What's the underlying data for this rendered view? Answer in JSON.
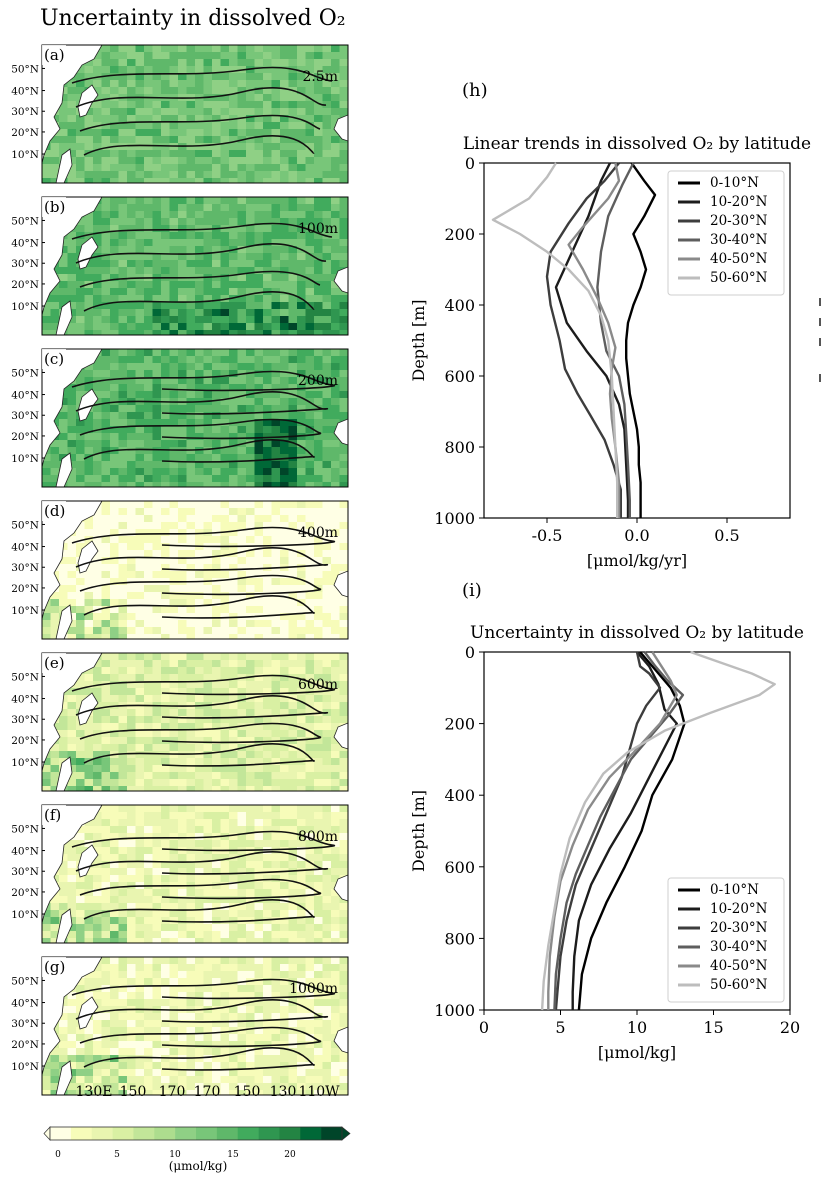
{
  "page_title": "Uncertainty in dissolved O₂",
  "maps": {
    "lat_labels": [
      "50°N",
      "40°N",
      "30°N",
      "20°N",
      "10°N"
    ],
    "lon_labels": [
      "130E",
      "150",
      "170",
      "170",
      "150",
      "130",
      "110W"
    ],
    "panels": [
      {
        "label": "(a)",
        "depth": "2.5m",
        "level": 0.55
      },
      {
        "label": "(b)",
        "depth": "100m",
        "level": 0.6
      },
      {
        "label": "(c)",
        "depth": "200m",
        "level": 0.62
      },
      {
        "label": "(d)",
        "depth": "400m",
        "level": 0.05
      },
      {
        "label": "(e)",
        "depth": "600m",
        "level": 0.22
      },
      {
        "label": "(f)",
        "depth": "800m",
        "level": 0.16
      },
      {
        "label": "(g)",
        "depth": "1000m",
        "level": 0.14
      }
    ],
    "colorbar": {
      "ticks": [
        "0",
        "5",
        "10",
        "15",
        "20"
      ],
      "unit": "(μmol/kg)",
      "colors": [
        "#ffffe5",
        "#f7fcb9",
        "#e9f5b0",
        "#d9f0a3",
        "#c2e699",
        "#addd8e",
        "#8fd085",
        "#78c679",
        "#5fb86a",
        "#41ab5d",
        "#2f9650",
        "#238443",
        "#006837",
        "#004529"
      ]
    }
  },
  "chart_data": [
    {
      "type": "line",
      "panel_label": "(h)",
      "title": "Linear trends in dissolved O₂ by latitude",
      "xlabel": "[μmol/kg/yr]",
      "ylabel": "Depth [m]",
      "xlim": [
        -0.85,
        0.85
      ],
      "ylim": [
        1000,
        0
      ],
      "xticks": [
        "-0.5",
        "0.0",
        "0.5"
      ],
      "xtick_values": [
        -0.5,
        0.0,
        0.5
      ],
      "yticks": [
        "0",
        "200",
        "400",
        "600",
        "800",
        "1000"
      ],
      "ytick_values": [
        0,
        200,
        400,
        600,
        800,
        1000
      ],
      "legend_position": "top-right",
      "series": [
        {
          "name": "0-10°N",
          "color": "#000000",
          "points": [
            [
              -0.03,
              0
            ],
            [
              0.04,
              50
            ],
            [
              0.1,
              90
            ],
            [
              0.04,
              150
            ],
            [
              -0.02,
              200
            ],
            [
              0.02,
              250
            ],
            [
              0.05,
              300
            ],
            [
              0.02,
              350
            ],
            [
              -0.02,
              400
            ],
            [
              -0.05,
              450
            ],
            [
              -0.06,
              500
            ],
            [
              -0.06,
              550
            ],
            [
              -0.05,
              600
            ],
            [
              -0.04,
              650
            ],
            [
              -0.02,
              700
            ],
            [
              0.0,
              750
            ],
            [
              0.01,
              800
            ],
            [
              0.01,
              850
            ],
            [
              0.02,
              900
            ],
            [
              0.02,
              950
            ],
            [
              0.02,
              1000
            ]
          ]
        },
        {
          "name": "10-20°N",
          "color": "#1c1c1c",
          "points": [
            [
              -0.15,
              0
            ],
            [
              -0.2,
              50
            ],
            [
              -0.27,
              150
            ],
            [
              -0.36,
              250
            ],
            [
              -0.45,
              350
            ],
            [
              -0.39,
              450
            ],
            [
              -0.28,
              530
            ],
            [
              -0.17,
              600
            ],
            [
              -0.1,
              680
            ],
            [
              -0.07,
              750
            ],
            [
              -0.06,
              850
            ],
            [
              -0.05,
              950
            ],
            [
              -0.05,
              1000
            ]
          ]
        },
        {
          "name": "20-30°N",
          "color": "#3d3d3d",
          "points": [
            [
              -0.1,
              0
            ],
            [
              -0.18,
              50
            ],
            [
              -0.28,
              100
            ],
            [
              -0.38,
              170
            ],
            [
              -0.48,
              250
            ],
            [
              -0.5,
              320
            ],
            [
              -0.48,
              400
            ],
            [
              -0.43,
              500
            ],
            [
              -0.4,
              580
            ],
            [
              -0.33,
              650
            ],
            [
              -0.26,
              710
            ],
            [
              -0.18,
              780
            ],
            [
              -0.13,
              850
            ],
            [
              -0.09,
              920
            ],
            [
              -0.09,
              1000
            ]
          ]
        },
        {
          "name": "30-40°N",
          "color": "#5e5e5e",
          "points": [
            [
              -0.02,
              0
            ],
            [
              -0.08,
              60
            ],
            [
              -0.16,
              150
            ],
            [
              -0.2,
              250
            ],
            [
              -0.22,
              350
            ],
            [
              -0.2,
              450
            ],
            [
              -0.17,
              530
            ],
            [
              -0.1,
              600
            ],
            [
              -0.07,
              680
            ],
            [
              -0.06,
              760
            ],
            [
              -0.05,
              850
            ],
            [
              -0.04,
              950
            ],
            [
              -0.04,
              1000
            ]
          ]
        },
        {
          "name": "40-50°N",
          "color": "#8a8a8a",
          "points": [
            [
              -0.12,
              0
            ],
            [
              -0.1,
              50
            ],
            [
              -0.16,
              100
            ],
            [
              -0.3,
              180
            ],
            [
              -0.38,
              230
            ],
            [
              -0.3,
              300
            ],
            [
              -0.22,
              380
            ],
            [
              -0.16,
              450
            ],
            [
              -0.12,
              520
            ],
            [
              -0.14,
              580
            ],
            [
              -0.15,
              650
            ],
            [
              -0.14,
              720
            ],
            [
              -0.12,
              800
            ],
            [
              -0.1,
              900
            ],
            [
              -0.1,
              1000
            ]
          ]
        },
        {
          "name": "50-60°N",
          "color": "#bdbdbd",
          "points": [
            [
              -0.45,
              0
            ],
            [
              -0.5,
              40
            ],
            [
              -0.6,
              100
            ],
            [
              -0.8,
              160
            ],
            [
              -0.65,
              200
            ],
            [
              -0.5,
              250
            ],
            [
              -0.38,
              300
            ],
            [
              -0.27,
              360
            ],
            [
              -0.2,
              430
            ],
            [
              -0.16,
              500
            ],
            [
              -0.14,
              600
            ],
            [
              -0.13,
              700
            ],
            [
              -0.12,
              800
            ],
            [
              -0.11,
              900
            ],
            [
              -0.11,
              1000
            ]
          ]
        }
      ]
    },
    {
      "type": "line",
      "panel_label": "(i)",
      "title": "Uncertainty in dissolved O₂ by latitude",
      "xlabel": "[μmol/kg]",
      "ylabel": "Depth [m]",
      "xlim": [
        0,
        20
      ],
      "ylim": [
        1000,
        0
      ],
      "xticks": [
        "0",
        "5",
        "10",
        "15",
        "20"
      ],
      "xtick_values": [
        0,
        5,
        10,
        15,
        20
      ],
      "yticks": [
        "0",
        "200",
        "400",
        "600",
        "800",
        "1000"
      ],
      "ytick_values": [
        0,
        200,
        400,
        600,
        800,
        1000
      ],
      "legend_position": "bottom-right",
      "series": [
        {
          "name": "0-10°N",
          "color": "#000000",
          "points": [
            [
              10.2,
              0
            ],
            [
              11.2,
              50
            ],
            [
              12.2,
              100
            ],
            [
              12.8,
              150
            ],
            [
              13.1,
              200
            ],
            [
              12.3,
              300
            ],
            [
              11.0,
              400
            ],
            [
              10.3,
              500
            ],
            [
              9.2,
              600
            ],
            [
              8.0,
              700
            ],
            [
              7.0,
              800
            ],
            [
              6.4,
              900
            ],
            [
              6.2,
              1000
            ]
          ]
        },
        {
          "name": "10-20°N",
          "color": "#1c1c1c",
          "points": [
            [
              10.0,
              0
            ],
            [
              10.8,
              40
            ],
            [
              11.4,
              90
            ],
            [
              11.8,
              160
            ],
            [
              12.6,
              200
            ],
            [
              12.0,
              250
            ],
            [
              10.8,
              350
            ],
            [
              9.6,
              450
            ],
            [
              8.2,
              550
            ],
            [
              7.0,
              650
            ],
            [
              6.2,
              750
            ],
            [
              5.9,
              850
            ],
            [
              5.8,
              950
            ],
            [
              5.8,
              1000
            ]
          ]
        },
        {
          "name": "20-30°N",
          "color": "#3d3d3d",
          "points": [
            [
              10.0,
              0
            ],
            [
              10.2,
              40
            ],
            [
              10.8,
              60
            ],
            [
              11.5,
              100
            ],
            [
              10.6,
              150
            ],
            [
              10.0,
              200
            ],
            [
              9.6,
              260
            ],
            [
              9.0,
              350
            ],
            [
              8.0,
              450
            ],
            [
              7.0,
              550
            ],
            [
              6.0,
              650
            ],
            [
              5.4,
              750
            ],
            [
              5.0,
              850
            ],
            [
              4.8,
              950
            ],
            [
              4.7,
              1000
            ]
          ]
        },
        {
          "name": "30-40°N",
          "color": "#5e5e5e",
          "points": [
            [
              10.5,
              0
            ],
            [
              11.2,
              40
            ],
            [
              12.0,
              80
            ],
            [
              13.0,
              120
            ],
            [
              12.0,
              180
            ],
            [
              10.8,
              240
            ],
            [
              9.6,
              300
            ],
            [
              8.6,
              380
            ],
            [
              7.6,
              460
            ],
            [
              6.8,
              540
            ],
            [
              6.0,
              620
            ],
            [
              5.4,
              700
            ],
            [
              5.0,
              800
            ],
            [
              4.7,
              900
            ],
            [
              4.6,
              1000
            ]
          ]
        },
        {
          "name": "40-50°N",
          "color": "#8a8a8a",
          "points": [
            [
              11.0,
              0
            ],
            [
              11.6,
              40
            ],
            [
              12.2,
              80
            ],
            [
              12.6,
              120
            ],
            [
              11.5,
              200
            ],
            [
              9.8,
              280
            ],
            [
              8.2,
              350
            ],
            [
              6.8,
              440
            ],
            [
              5.8,
              540
            ],
            [
              5.0,
              640
            ],
            [
              4.6,
              740
            ],
            [
              4.3,
              850
            ],
            [
              4.2,
              950
            ],
            [
              4.2,
              1000
            ]
          ]
        },
        {
          "name": "50-60°N",
          "color": "#bdbdbd",
          "points": [
            [
              13.5,
              0
            ],
            [
              15.5,
              30
            ],
            [
              17.5,
              60
            ],
            [
              19.0,
              90
            ],
            [
              18.0,
              120
            ],
            [
              14.8,
              170
            ],
            [
              11.8,
              220
            ],
            [
              9.4,
              280
            ],
            [
              7.8,
              340
            ],
            [
              6.6,
              420
            ],
            [
              5.6,
              520
            ],
            [
              5.0,
              620
            ],
            [
              4.6,
              720
            ],
            [
              4.2,
              820
            ],
            [
              3.9,
              920
            ],
            [
              3.8,
              1000
            ]
          ]
        }
      ]
    }
  ]
}
